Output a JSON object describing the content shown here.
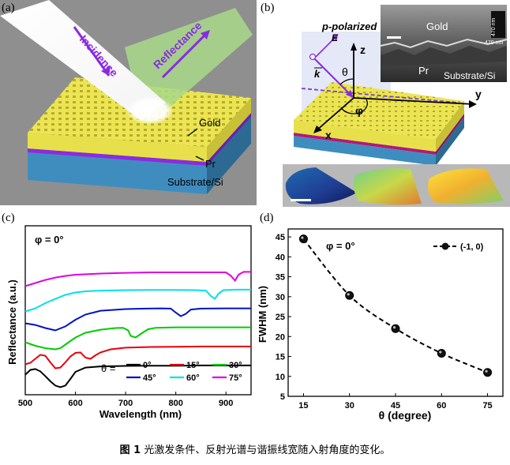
{
  "panels": {
    "a": {
      "label": "(a)",
      "incidence": "Incidence",
      "reflectance": "Reflectance",
      "gold": "Gold",
      "pr": "Pr",
      "substrate": "Substrate/Si"
    },
    "b": {
      "label": "(b)",
      "p_polarized": "p-polarized",
      "E": "E",
      "k": "k",
      "z": "z",
      "y": "y",
      "x": "x",
      "theta": "θ",
      "phi": "φ",
      "inset_gold": "Gold",
      "inset_pr": "Pr",
      "inset_substrate": "Substrate/Si",
      "inset_scale_v": "470 nm",
      "inset_scale_h": "470 nm"
    },
    "c": {
      "label": "(c)",
      "phi_note": "φ = 0°",
      "theta_eq": "θ ="
    },
    "d": {
      "label": "(d)",
      "phi_note": "φ = 0°"
    }
  },
  "colors": {
    "theta0": "#000000",
    "theta15": "#e8000b",
    "theta30": "#00cc00",
    "theta45": "#0010c8",
    "theta60": "#00e0e8",
    "theta75": "#e000e0",
    "gold": "#e8e04a",
    "purple": "#8a2be2",
    "substrate": "#3f8dbf"
  },
  "chart_data": [
    {
      "type": "line",
      "panel": "c",
      "xlabel": "Wavelength (nm)",
      "ylabel": "Reflectance (a.u.)",
      "xlim": [
        500,
        950
      ],
      "xticks": [
        500,
        600,
        700,
        800,
        900
      ],
      "legend": [
        "0°",
        "15°",
        "30°",
        "45°",
        "60°",
        "75°"
      ],
      "legend_position": "bottom-right",
      "series": [
        {
          "name": "0°",
          "theta": 0,
          "offset": 0.0,
          "x": [
            500,
            510,
            520,
            530,
            540,
            550,
            560,
            570,
            580,
            590,
            600,
            620,
            650,
            700,
            750,
            800,
            850,
            900,
            950
          ],
          "y": [
            0.58,
            0.78,
            0.82,
            0.72,
            0.52,
            0.3,
            0.12,
            0.05,
            0.12,
            0.4,
            0.7,
            0.88,
            0.93,
            0.95,
            0.96,
            0.96,
            0.97,
            0.97,
            0.97
          ]
        },
        {
          "name": "15°",
          "theta": 15,
          "offset": 1.0,
          "x": [
            500,
            510,
            520,
            530,
            540,
            550,
            560,
            570,
            580,
            590,
            600,
            610,
            620,
            630,
            640,
            650,
            670,
            700,
            750,
            800,
            850,
            900,
            950
          ],
          "y": [
            0.22,
            0.28,
            0.45,
            0.62,
            0.58,
            0.3,
            0.05,
            0.08,
            0.3,
            0.55,
            0.7,
            0.72,
            0.5,
            0.45,
            0.6,
            0.72,
            0.85,
            0.92,
            0.95,
            0.96,
            0.97,
            0.97,
            0.97
          ]
        },
        {
          "name": "30°",
          "theta": 30,
          "offset": 2.0,
          "x": [
            500,
            520,
            540,
            560,
            570,
            580,
            590,
            600,
            620,
            650,
            680,
            695,
            705,
            710,
            720,
            730,
            745,
            760,
            800,
            850,
            900,
            950
          ],
          "y": [
            0.35,
            0.2,
            0.1,
            0.05,
            0.1,
            0.25,
            0.4,
            0.55,
            0.75,
            0.88,
            0.95,
            0.96,
            0.85,
            0.62,
            0.55,
            0.7,
            0.9,
            0.96,
            0.98,
            0.98,
            0.98,
            0.98
          ]
        },
        {
          "name": "45°",
          "theta": 45,
          "offset": 3.0,
          "x": [
            500,
            520,
            540,
            560,
            580,
            600,
            620,
            650,
            700,
            740,
            770,
            790,
            800,
            810,
            820,
            830,
            850,
            900,
            950
          ],
          "y": [
            0.35,
            0.28,
            0.15,
            0.05,
            0.22,
            0.5,
            0.72,
            0.88,
            0.95,
            0.97,
            0.98,
            0.97,
            0.8,
            0.65,
            0.75,
            0.93,
            0.97,
            0.98,
            0.98
          ]
        },
        {
          "name": "60°",
          "theta": 60,
          "offset": 4.0,
          "x": [
            500,
            520,
            540,
            560,
            580,
            600,
            620,
            650,
            700,
            750,
            800,
            840,
            860,
            870,
            878,
            885,
            895,
            920,
            950
          ],
          "y": [
            0.05,
            0.18,
            0.4,
            0.58,
            0.75,
            0.85,
            0.9,
            0.93,
            0.95,
            0.96,
            0.96,
            0.95,
            0.93,
            0.7,
            0.58,
            0.8,
            0.95,
            0.97,
            0.97
          ]
        },
        {
          "name": "75°",
          "theta": 75,
          "offset": 5.0,
          "x": [
            500,
            520,
            540,
            560,
            580,
            600,
            650,
            700,
            750,
            800,
            850,
            880,
            900,
            910,
            918,
            925,
            935,
            950
          ],
          "y": [
            0.32,
            0.45,
            0.58,
            0.68,
            0.75,
            0.8,
            0.85,
            0.88,
            0.9,
            0.9,
            0.9,
            0.9,
            0.9,
            0.75,
            0.55,
            0.8,
            0.92,
            0.92
          ]
        }
      ]
    },
    {
      "type": "line",
      "panel": "d",
      "xlabel": "θ (degree)",
      "ylabel": "FWHM (nm)",
      "xlim": [
        10,
        80
      ],
      "ylim": [
        5,
        47
      ],
      "xticks": [
        15,
        30,
        45,
        60,
        75
      ],
      "yticks": [
        5,
        10,
        15,
        20,
        25,
        30,
        35,
        40,
        45
      ],
      "legend_position": "top-right",
      "series": [
        {
          "name": "(-1, 0)",
          "x": [
            15,
            30,
            45,
            60,
            75
          ],
          "y": [
            44.5,
            30.3,
            22.0,
            15.8,
            11.0
          ]
        }
      ]
    }
  ],
  "caption": {
    "figure_number": "图 1",
    "text": "光激发条件、反射光谱与谐振线宽随入射角度的变化。"
  }
}
